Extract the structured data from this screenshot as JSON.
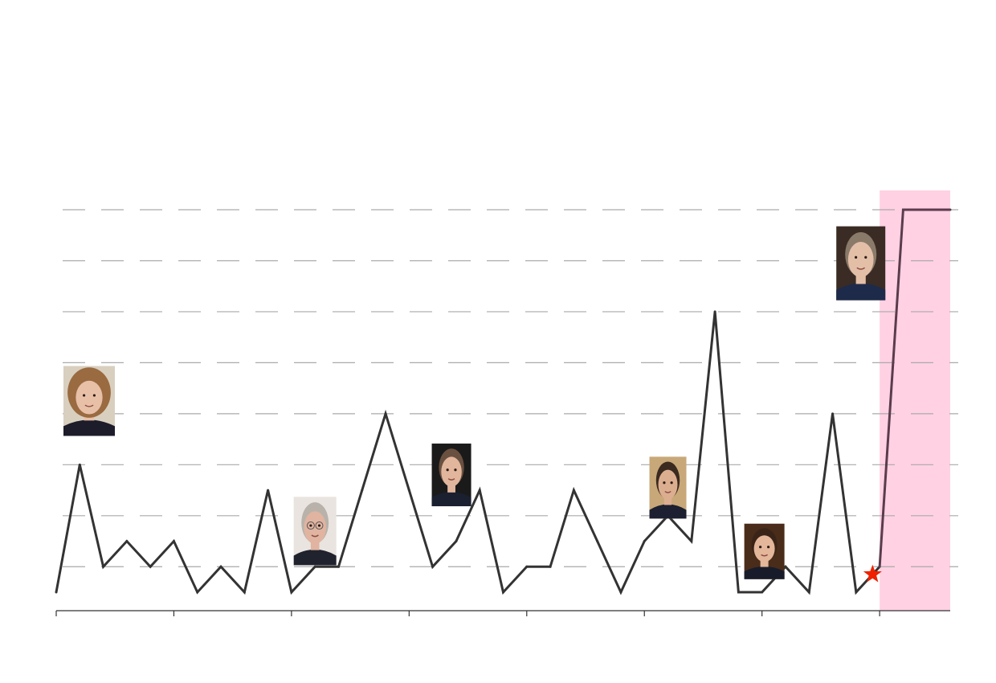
{
  "chart_data": {
    "type": "line",
    "x": [
      0,
      1,
      2,
      3,
      4,
      5,
      6,
      7,
      8,
      9,
      10,
      11,
      12,
      13,
      14,
      15,
      16,
      17,
      18,
      19,
      20,
      21,
      22,
      23,
      24,
      25,
      26,
      27,
      28,
      29,
      30,
      31,
      32,
      33,
      34,
      35,
      36,
      37,
      38
    ],
    "values": [
      0,
      5,
      1,
      2,
      1,
      2,
      0,
      1,
      0,
      4,
      0,
      1,
      1,
      4,
      7,
      4,
      1,
      2,
      4,
      0,
      1,
      1,
      4,
      2,
      0,
      2,
      3,
      2,
      11,
      0,
      0,
      1,
      0,
      7,
      0,
      1,
      15,
      15,
      15
    ],
    "ylim": [
      -0.5,
      15.5
    ],
    "gridlines": [
      1,
      3,
      5,
      7,
      9,
      11,
      13,
      15
    ],
    "xlim": [
      0,
      38
    ],
    "x_ticks": [
      0,
      5,
      10,
      15,
      20,
      25,
      30,
      35
    ],
    "highlight_region": [
      35,
      38
    ],
    "marker_point": {
      "x": 34.7,
      "y": 0.7,
      "shape": "star"
    },
    "portraits": [
      {
        "name": "thatcher-portrait",
        "x": 1.4,
        "y": 7.5
      },
      {
        "name": "major-portrait",
        "x": 11.0,
        "y": 2.4
      },
      {
        "name": "blair-portrait",
        "x": 16.8,
        "y": 4.6
      },
      {
        "name": "brown-portrait",
        "x": 26.0,
        "y": 4.1
      },
      {
        "name": "cameron-portrait",
        "x": 30.1,
        "y": 1.6
      },
      {
        "name": "may-portrait",
        "x": 34.2,
        "y": 12.9
      }
    ],
    "colors": {
      "line": "#333333",
      "highlight_line": "#5a3c4c",
      "highlight_band": "#ffd1e3",
      "grid": "#aaaaaa",
      "star": "#ee2200",
      "axis": "#333333"
    }
  }
}
